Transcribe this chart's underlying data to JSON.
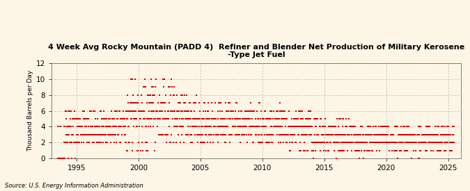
{
  "title": "4 Week Avg Rocky Mountain (PADD 4)  Refiner and Blender Net Production of Military Kerosene\n-Type Jet Fuel",
  "ylabel": "Thousand Barrels per Day",
  "source": "Source: U.S. Energy Information Administration",
  "background_color": "#fdf5e6",
  "marker_color": "#cc0000",
  "xlim": [
    1993.0,
    2026.0
  ],
  "ylim": [
    0,
    12
  ],
  "yticks": [
    0,
    2,
    4,
    6,
    8,
    10,
    12
  ],
  "xticks": [
    1995,
    2000,
    2005,
    2010,
    2015,
    2020,
    2025
  ],
  "grid_color": "#aaaaaa",
  "marker_size": 2.5
}
